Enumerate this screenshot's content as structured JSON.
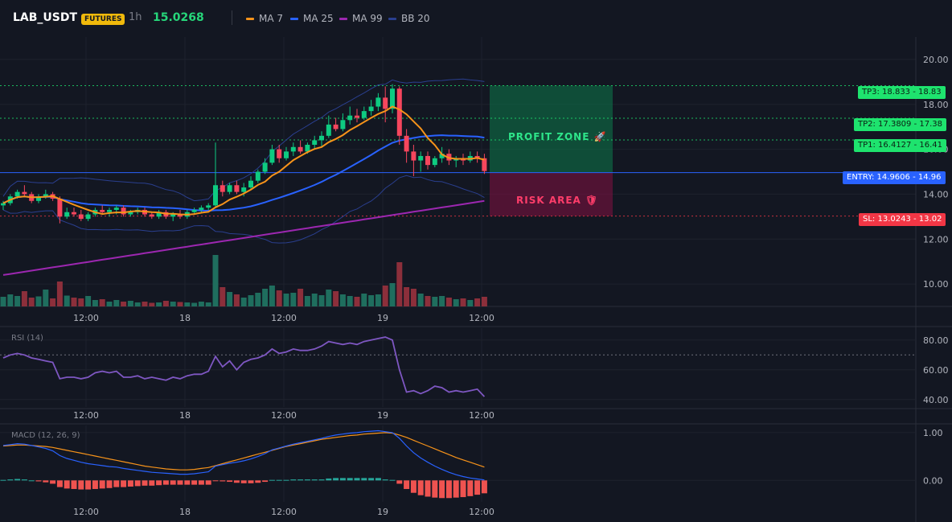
{
  "header": {
    "symbol": "LAB_USDT",
    "badge": "FUTURES",
    "timeframe": "1h",
    "price": "15.0268"
  },
  "legend": [
    {
      "label": "MA 7",
      "color": "#f7931a"
    },
    {
      "label": "MA 25",
      "color": "#2962ff"
    },
    {
      "label": "MA 99",
      "color": "#9c27b0"
    },
    {
      "label": "BB 20",
      "color": "#2a3f8f"
    }
  ],
  "levels": {
    "tp3": {
      "label": "TP3: 18.833",
      "axis": "18.83",
      "value": 18.833,
      "color": "#1ee36e"
    },
    "tp2": {
      "label": "TP2: 17.3809",
      "axis": "17.38",
      "value": 17.3809,
      "color": "#1ee36e"
    },
    "tp1": {
      "label": "TP1: 16.4127",
      "axis": "16.41",
      "value": 16.4127,
      "color": "#1ee36e"
    },
    "entry": {
      "label": "ENTRY: 14.9606",
      "axis": "14.96",
      "value": 14.9606,
      "color": "#2962ff"
    },
    "sl": {
      "label": "SL: 13.0243",
      "axis": "13.02",
      "value": 13.0243,
      "color": "#f23645"
    }
  },
  "zones": {
    "profit_label": "PROFIT ZONE 🚀",
    "risk_label": "RISK AREA 🛡"
  },
  "indicators": {
    "rsi_title": "RSI (14)",
    "macd_title": "MACD (12, 26, 9)"
  },
  "chart_data": {
    "type": "candlestick",
    "x_ticks": [
      "12:00",
      "18",
      "12:00",
      "19",
      "12:00"
    ],
    "price_axis": {
      "ticks": [
        "20.00",
        "18.00",
        "16.00",
        "14.00",
        "12.00",
        "10.00"
      ],
      "range": [
        9.0,
        21.0
      ]
    },
    "rsi_axis": {
      "ticks": [
        "80.00",
        "60.00",
        "40.00"
      ],
      "range": [
        35,
        88
      ],
      "overbought": 70
    },
    "macd_axis": {
      "ticks": [
        "1.00",
        "0.00"
      ],
      "range": [
        -0.45,
        1.15
      ]
    },
    "candles": [
      [
        13.5,
        13.7,
        13.3,
        13.6
      ],
      [
        13.6,
        14.0,
        13.5,
        13.9
      ],
      [
        13.9,
        14.2,
        13.8,
        14.1
      ],
      [
        14.1,
        14.4,
        13.9,
        14.0
      ],
      [
        14.0,
        14.1,
        13.6,
        13.7
      ],
      [
        13.7,
        14.0,
        13.6,
        13.9
      ],
      [
        13.9,
        14.2,
        13.8,
        14.0
      ],
      [
        14.0,
        14.1,
        13.7,
        13.8
      ],
      [
        13.8,
        13.9,
        12.7,
        13.0
      ],
      [
        13.0,
        13.4,
        12.9,
        13.2
      ],
      [
        13.2,
        13.4,
        13.0,
        13.1
      ],
      [
        13.1,
        13.3,
        12.8,
        12.9
      ],
      [
        12.9,
        13.2,
        12.8,
        13.1
      ],
      [
        13.1,
        13.4,
        13.0,
        13.3
      ],
      [
        13.3,
        13.5,
        13.1,
        13.2
      ],
      [
        13.2,
        13.4,
        13.0,
        13.3
      ],
      [
        13.3,
        13.5,
        13.1,
        13.4
      ],
      [
        13.4,
        13.5,
        13.0,
        13.1
      ],
      [
        13.1,
        13.3,
        13.0,
        13.2
      ],
      [
        13.2,
        13.4,
        13.1,
        13.3
      ],
      [
        13.3,
        13.4,
        13.0,
        13.1
      ],
      [
        13.1,
        13.2,
        12.9,
        13.0
      ],
      [
        13.0,
        13.3,
        12.9,
        13.2
      ],
      [
        13.2,
        13.3,
        12.9,
        13.0
      ],
      [
        13.0,
        13.2,
        12.8,
        13.1
      ],
      [
        13.1,
        13.3,
        12.9,
        13.0
      ],
      [
        13.0,
        13.3,
        12.9,
        13.2
      ],
      [
        13.2,
        13.4,
        13.1,
        13.3
      ],
      [
        13.3,
        13.5,
        13.2,
        13.4
      ],
      [
        13.4,
        13.6,
        13.3,
        13.5
      ],
      [
        13.5,
        16.3,
        13.4,
        14.4
      ],
      [
        14.4,
        14.6,
        13.9,
        14.1
      ],
      [
        14.1,
        14.5,
        14.0,
        14.4
      ],
      [
        14.4,
        14.6,
        14.0,
        14.1
      ],
      [
        14.1,
        14.5,
        13.9,
        14.3
      ],
      [
        14.3,
        14.8,
        14.2,
        14.6
      ],
      [
        14.6,
        15.1,
        14.5,
        15.0
      ],
      [
        15.0,
        15.6,
        14.9,
        15.4
      ],
      [
        15.4,
        16.2,
        15.3,
        16.0
      ],
      [
        16.0,
        16.2,
        15.4,
        15.6
      ],
      [
        15.6,
        16.1,
        15.5,
        15.9
      ],
      [
        15.9,
        16.3,
        15.7,
        16.1
      ],
      [
        16.1,
        16.4,
        15.8,
        15.9
      ],
      [
        15.9,
        16.3,
        15.8,
        16.2
      ],
      [
        16.2,
        16.6,
        16.0,
        16.4
      ],
      [
        16.4,
        16.8,
        16.1,
        16.6
      ],
      [
        16.6,
        17.5,
        16.5,
        17.1
      ],
      [
        17.1,
        17.4,
        16.8,
        16.9
      ],
      [
        16.9,
        17.6,
        16.8,
        17.3
      ],
      [
        17.3,
        17.9,
        17.1,
        17.5
      ],
      [
        17.5,
        17.8,
        17.2,
        17.4
      ],
      [
        17.4,
        17.9,
        17.3,
        17.7
      ],
      [
        17.7,
        18.2,
        17.5,
        17.9
      ],
      [
        17.9,
        18.5,
        17.7,
        18.3
      ],
      [
        18.3,
        18.8,
        17.2,
        17.8
      ],
      [
        17.8,
        18.9,
        17.6,
        18.7
      ],
      [
        18.7,
        18.8,
        16.2,
        16.6
      ],
      [
        16.6,
        16.9,
        15.4,
        15.9
      ],
      [
        15.9,
        16.2,
        14.8,
        15.5
      ],
      [
        15.5,
        15.9,
        15.0,
        15.7
      ],
      [
        15.7,
        15.9,
        15.1,
        15.3
      ],
      [
        15.3,
        15.7,
        15.2,
        15.6
      ],
      [
        15.6,
        16.1,
        15.4,
        15.8
      ],
      [
        15.8,
        16.0,
        15.3,
        15.5
      ],
      [
        15.5,
        15.7,
        15.2,
        15.6
      ],
      [
        15.6,
        15.8,
        15.3,
        15.5
      ],
      [
        15.5,
        15.9,
        15.4,
        15.7
      ],
      [
        15.7,
        15.9,
        15.4,
        15.6
      ],
      [
        15.6,
        15.8,
        14.9,
        15.03
      ]
    ],
    "volumes": [
      2.4,
      3.0,
      2.6,
      3.8,
      2.2,
      2.5,
      4.2,
      2.0,
      6.2,
      2.7,
      2.2,
      2.0,
      2.6,
      1.6,
      1.8,
      1.2,
      1.6,
      1.2,
      1.4,
      1.0,
      1.2,
      0.9,
      1.0,
      1.4,
      1.2,
      1.1,
      1.0,
      0.9,
      1.2,
      1.0,
      12.8,
      4.8,
      3.6,
      3.0,
      2.2,
      2.8,
      3.4,
      4.4,
      5.2,
      4.0,
      3.2,
      3.4,
      4.4,
      2.6,
      3.2,
      2.8,
      4.2,
      3.8,
      3.0,
      2.6,
      2.4,
      3.2,
      2.8,
      3.0,
      5.2,
      5.8,
      11.0,
      4.8,
      4.4,
      3.2,
      2.6,
      2.4,
      2.6,
      2.2,
      1.8,
      2.0,
      1.6,
      2.0,
      2.4
    ],
    "rsi": [
      68,
      70,
      71,
      70,
      68,
      67,
      66,
      65,
      54,
      55,
      55,
      54,
      55,
      58,
      59,
      58,
      59,
      55,
      55,
      56,
      54,
      55,
      54,
      53,
      55,
      54,
      56,
      57,
      57,
      59,
      69,
      62,
      66,
      60,
      65,
      67,
      68,
      70,
      74,
      71,
      72,
      74,
      73,
      73,
      74,
      76,
      79,
      78,
      77,
      78,
      77,
      79,
      80,
      81,
      82,
      80,
      60,
      45,
      46,
      44,
      46,
      49,
      48,
      45,
      46,
      45,
      46,
      47,
      42
    ],
    "macd": [
      0.73,
      0.75,
      0.77,
      0.76,
      0.73,
      0.7,
      0.67,
      0.62,
      0.52,
      0.46,
      0.42,
      0.38,
      0.35,
      0.33,
      0.31,
      0.29,
      0.28,
      0.25,
      0.23,
      0.21,
      0.19,
      0.17,
      0.16,
      0.15,
      0.14,
      0.13,
      0.13,
      0.14,
      0.16,
      0.18,
      0.3,
      0.33,
      0.36,
      0.38,
      0.41,
      0.45,
      0.5,
      0.56,
      0.64,
      0.68,
      0.72,
      0.76,
      0.79,
      0.82,
      0.85,
      0.88,
      0.92,
      0.95,
      0.97,
      0.99,
      1.0,
      1.02,
      1.03,
      1.04,
      1.02,
      1.0,
      0.88,
      0.72,
      0.58,
      0.47,
      0.38,
      0.3,
      0.23,
      0.17,
      0.12,
      0.08,
      0.05,
      0.03,
      0.01
    ],
    "signal": [
      0.72,
      0.73,
      0.74,
      0.74,
      0.73,
      0.72,
      0.71,
      0.69,
      0.66,
      0.63,
      0.6,
      0.57,
      0.54,
      0.51,
      0.48,
      0.45,
      0.42,
      0.39,
      0.36,
      0.33,
      0.3,
      0.28,
      0.26,
      0.24,
      0.23,
      0.22,
      0.22,
      0.23,
      0.25,
      0.27,
      0.31,
      0.35,
      0.39,
      0.43,
      0.47,
      0.51,
      0.55,
      0.59,
      0.63,
      0.67,
      0.71,
      0.74,
      0.77,
      0.8,
      0.83,
      0.86,
      0.88,
      0.9,
      0.92,
      0.94,
      0.95,
      0.97,
      0.98,
      0.99,
      1.0,
      0.99,
      0.95,
      0.9,
      0.84,
      0.78,
      0.72,
      0.66,
      0.6,
      0.54,
      0.48,
      0.43,
      0.38,
      0.33,
      0.28
    ],
    "histogram": [
      0.01,
      0.02,
      0.03,
      0.02,
      0.0,
      -0.02,
      -0.04,
      -0.07,
      -0.14,
      -0.17,
      -0.18,
      -0.19,
      -0.19,
      -0.18,
      -0.17,
      -0.16,
      -0.14,
      -0.14,
      -0.13,
      -0.12,
      -0.11,
      -0.11,
      -0.1,
      -0.09,
      -0.09,
      -0.09,
      -0.09,
      -0.09,
      -0.09,
      -0.09,
      -0.01,
      -0.02,
      -0.03,
      -0.05,
      -0.06,
      -0.06,
      -0.05,
      -0.03,
      0.01,
      0.01,
      0.01,
      0.02,
      0.02,
      0.02,
      0.02,
      0.02,
      0.04,
      0.05,
      0.05,
      0.05,
      0.05,
      0.05,
      0.05,
      0.05,
      0.02,
      0.01,
      -0.07,
      -0.18,
      -0.26,
      -0.31,
      -0.34,
      -0.36,
      -0.37,
      -0.37,
      -0.36,
      -0.35,
      -0.33,
      -0.3,
      -0.27
    ]
  }
}
